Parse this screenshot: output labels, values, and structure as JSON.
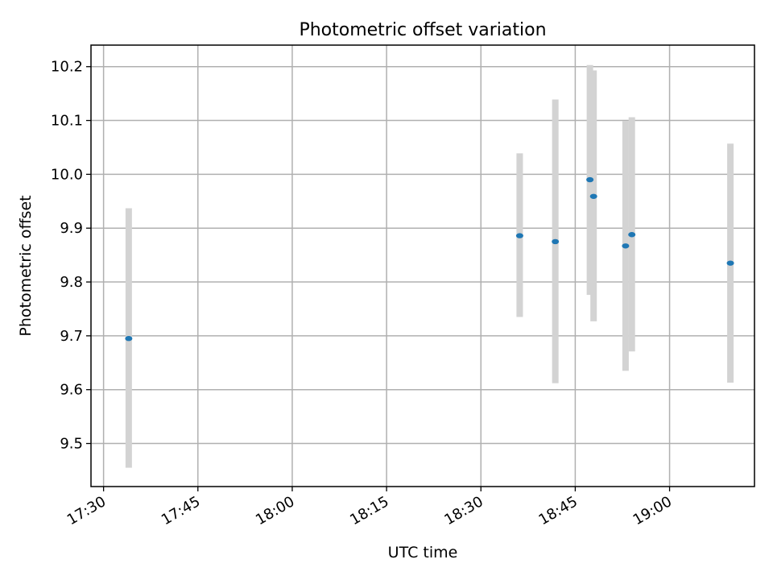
{
  "chart_data": {
    "type": "scatter",
    "title": "Photometric offset variation",
    "xlabel": "UTC time",
    "ylabel": "Photometric offset",
    "x_axis": {
      "unit": "time",
      "range": [
        "17:28:00",
        "19:13:30"
      ],
      "ticks": [
        "17:30",
        "17:45",
        "18:00",
        "18:15",
        "18:30",
        "18:45",
        "19:00"
      ]
    },
    "y_axis": {
      "range": [
        9.42,
        10.24
      ],
      "ticks": [
        "9.5",
        "9.6",
        "9.7",
        "9.8",
        "9.9",
        "10.0",
        "10.1",
        "10.2"
      ]
    },
    "grid": true,
    "colors": {
      "point": "#1f77b4",
      "error_bar": "#d3d3d3",
      "grid": "#b0b0b0"
    },
    "series": [
      {
        "points": [
          {
            "x": "17:34:00",
            "y": 9.695,
            "ylow": 9.455,
            "yhigh": 9.937
          },
          {
            "x": "18:36:10",
            "y": 9.886,
            "ylow": 9.735,
            "yhigh": 10.039
          },
          {
            "x": "18:41:50",
            "y": 9.875,
            "ylow": 9.612,
            "yhigh": 10.139
          },
          {
            "x": "18:47:20",
            "y": 9.99,
            "ylow": 9.776,
            "yhigh": 10.203
          },
          {
            "x": "18:47:55",
            "y": 9.959,
            "ylow": 9.727,
            "yhigh": 10.193
          },
          {
            "x": "18:53:00",
            "y": 9.867,
            "ylow": 9.635,
            "yhigh": 10.099
          },
          {
            "x": "18:54:00",
            "y": 9.888,
            "ylow": 9.671,
            "yhigh": 10.106
          },
          {
            "x": "19:09:40",
            "y": 9.835,
            "ylow": 9.613,
            "yhigh": 10.057
          }
        ]
      }
    ]
  }
}
